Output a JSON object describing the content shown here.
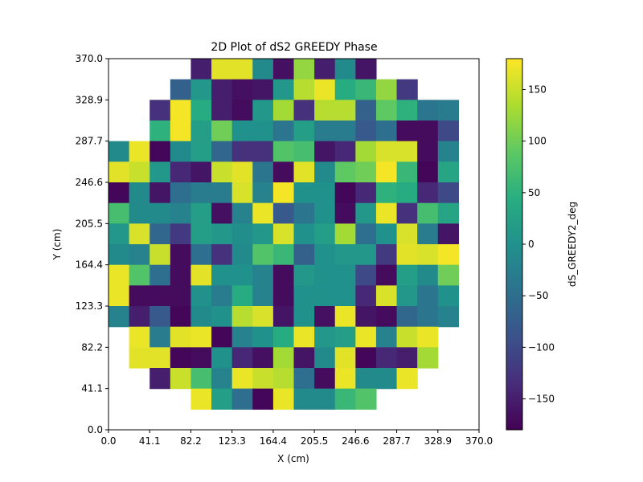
{
  "chart_data": {
    "type": "heatmap",
    "title": "2D Plot of dS2 GREEDY Phase",
    "xlabel": "X (cm)",
    "ylabel": "Y (cm)",
    "xlim": [
      0,
      370
    ],
    "ylim": [
      0,
      370
    ],
    "xticks": [
      "0.0",
      "41.1",
      "82.2",
      "123.3",
      "164.4",
      "205.5",
      "246.6",
      "287.7",
      "328.9",
      "370.0"
    ],
    "yticks": [
      "0.0",
      "41.1",
      "82.2",
      "123.3",
      "164.4",
      "205.5",
      "246.6",
      "287.7",
      "328.9",
      "370.0"
    ],
    "colorbar": {
      "label": "dS_GREEDY2_deg",
      "min": -180,
      "max": 180,
      "ticks": [
        "150",
        "100",
        "50",
        "0",
        "−50",
        "−100",
        "−150"
      ],
      "tick_values": [
        150,
        100,
        50,
        0,
        -50,
        -100,
        -150
      ]
    },
    "colormap": "viridis",
    "grid_size": [
      18,
      18
    ],
    "z": [
      [
        null,
        null,
        null,
        null,
        -150,
        165,
        165,
        -10,
        -165,
        120,
        -150,
        -10,
        -160,
        null,
        null,
        null,
        null,
        null
      ],
      [
        null,
        null,
        null,
        -70,
        10,
        -150,
        -165,
        -160,
        10,
        140,
        170,
        40,
        60,
        120,
        -120,
        null,
        null,
        null
      ],
      [
        null,
        null,
        -130,
        175,
        40,
        -150,
        -170,
        10,
        130,
        -130,
        140,
        140,
        -70,
        90,
        50,
        -40,
        -30,
        null
      ],
      [
        null,
        null,
        50,
        175,
        20,
        100,
        0,
        0,
        -40,
        20,
        -30,
        -30,
        -80,
        -50,
        -170,
        -170,
        -100,
        null
      ],
      [
        -10,
        170,
        -175,
        -10,
        20,
        -60,
        -130,
        -130,
        80,
        70,
        -160,
        -140,
        130,
        160,
        160,
        -170,
        -20,
        null
      ],
      [
        165,
        150,
        10,
        -140,
        -160,
        150,
        165,
        -40,
        -170,
        165,
        -10,
        90,
        100,
        175,
        60,
        -175,
        30,
        null
      ],
      [
        -175,
        -10,
        -160,
        -50,
        -30,
        -30,
        160,
        -20,
        175,
        0,
        0,
        -175,
        -140,
        50,
        40,
        -140,
        -100,
        null
      ],
      [
        70,
        -10,
        -10,
        -20,
        20,
        -165,
        -20,
        170,
        -80,
        -40,
        0,
        -170,
        10,
        170,
        -130,
        70,
        30,
        null
      ],
      [
        10,
        160,
        -60,
        -120,
        20,
        10,
        -5,
        10,
        160,
        0,
        20,
        130,
        -50,
        0,
        160,
        -30,
        -160,
        null
      ],
      [
        -10,
        -20,
        150,
        -170,
        -50,
        -130,
        -10,
        80,
        60,
        -70,
        0,
        10,
        10,
        -120,
        165,
        160,
        175,
        null
      ],
      [
        170,
        80,
        -50,
        -170,
        165,
        0,
        0,
        -20,
        -170,
        10,
        0,
        0,
        -100,
        -170,
        20,
        -10,
        100,
        null
      ],
      [
        170,
        -170,
        -170,
        -170,
        0,
        -30,
        40,
        -20,
        -170,
        0,
        0,
        0,
        -140,
        160,
        10,
        -40,
        0,
        null
      ],
      [
        -20,
        -150,
        -80,
        -175,
        -10,
        0,
        140,
        160,
        -160,
        0,
        -165,
        170,
        -160,
        -170,
        -60,
        -40,
        -20,
        null
      ],
      [
        null,
        170,
        -30,
        165,
        170,
        -175,
        -20,
        0,
        40,
        170,
        10,
        20,
        170,
        -20,
        150,
        170,
        null,
        null
      ],
      [
        null,
        165,
        165,
        -175,
        -170,
        0,
        -140,
        -165,
        130,
        -160,
        -10,
        165,
        -175,
        -140,
        -150,
        130,
        null,
        null
      ],
      [
        null,
        null,
        -150,
        150,
        70,
        -20,
        170,
        150,
        140,
        -50,
        -170,
        170,
        -10,
        -10,
        170,
        null,
        null,
        null
      ],
      [
        null,
        null,
        null,
        null,
        170,
        20,
        -50,
        -175,
        170,
        -10,
        -10,
        60,
        80,
        null,
        null,
        null,
        null,
        null
      ],
      [
        null,
        null,
        null,
        null,
        null,
        null,
        null,
        null,
        null,
        null,
        null,
        null,
        null,
        null,
        null,
        null,
        null,
        null
      ]
    ]
  }
}
